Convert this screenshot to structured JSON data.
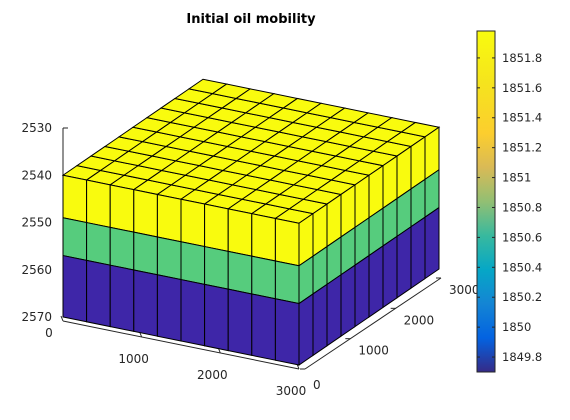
{
  "chart_data": {
    "type": "heatmap",
    "title": "Initial oil mobility",
    "grid": {
      "nx": 10,
      "ny": 10,
      "nz": 3
    },
    "x_range": [
      0,
      3000
    ],
    "y_range": [
      0,
      3000
    ],
    "z_range": [
      2530,
      2570
    ],
    "layer_depths": [
      2540,
      2549,
      2557,
      2570
    ],
    "layers": [
      {
        "top": 2540,
        "bottom": 2549,
        "value": 1851.98,
        "color": "#f9fb0e"
      },
      {
        "top": 2549,
        "bottom": 2557,
        "value": 1850.96,
        "color": "#56cc7d"
      },
      {
        "top": 2557,
        "bottom": 2570,
        "value": 1849.7,
        "color": "#3e26a8"
      }
    ],
    "x_ticks": [
      "0",
      "1000",
      "2000",
      "3000"
    ],
    "y_ticks": [
      "0",
      "1000",
      "2000",
      "3000"
    ],
    "z_ticks": [
      "2530",
      "2540",
      "2550",
      "2560",
      "2570"
    ],
    "colorbar": {
      "range": [
        1849.7,
        1851.98
      ],
      "colormap": "parula",
      "ticks": [
        "1851.8",
        "1851.6",
        "1851.4",
        "1851.2",
        "1851",
        "1850.8",
        "1850.6",
        "1850.4",
        "1850.2",
        "1850",
        "1849.8"
      ]
    }
  }
}
